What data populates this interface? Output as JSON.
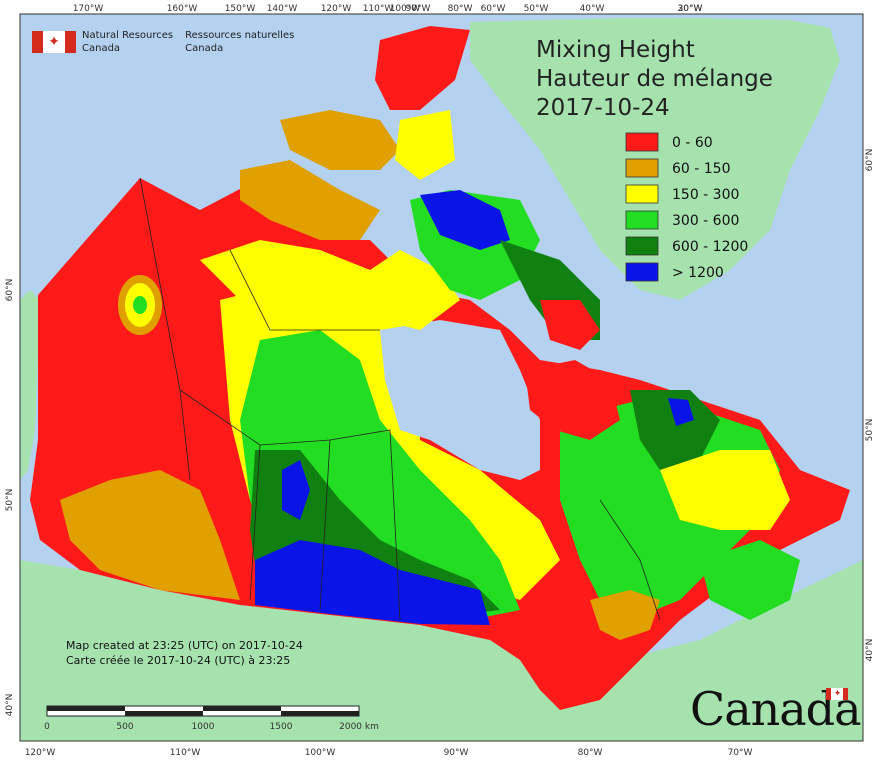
{
  "title": {
    "line1": "Mixing Height",
    "line2": "Hauteur de mélange",
    "date": "2017-10-24"
  },
  "agency": {
    "en_line1": "Natural Resources",
    "en_line2": "Canada",
    "fr_line1": "Ressources naturelles",
    "fr_line2": "Canada"
  },
  "legend": [
    {
      "label": "0 - 60",
      "color": "#ff1a1a"
    },
    {
      "label": "60 - 150",
      "color": "#e0a000"
    },
    {
      "label": "150 - 300",
      "color": "#ffff00"
    },
    {
      "label": "300 - 600",
      "color": "#22dd22"
    },
    {
      "label": "600 - 1200",
      "color": "#108010"
    },
    {
      "label": "> 1200",
      "color": "#0a14e6"
    }
  ],
  "credit": {
    "en": "Map created at 23:25 (UTC) on 2017-10-24",
    "fr": "Carte créée le 2017-10-24 (UTC) à 23:25"
  },
  "scale_bar": {
    "labels": [
      "0",
      "500",
      "1000",
      "1500",
      "2000 km"
    ]
  },
  "top_ticks": [
    "170°W",
    "160°W",
    "150°W",
    "140°W",
    "120°W",
    "110°W",
    "100°W",
    "90°W",
    "80°W",
    "60°W",
    "50°W",
    "40°W",
    "30°W",
    "20°W"
  ],
  "bottom_ticks": [
    "120°W",
    "110°W",
    "100°W",
    "90°W",
    "80°W",
    "70°W"
  ],
  "left_ticks": [
    "60°N",
    "50°N",
    "40°N"
  ],
  "right_ticks": [
    "60°N",
    "50°N",
    "40°N"
  ],
  "wordmark": "Canada",
  "colors": {
    "ocean": "#b4d2f0",
    "land_other": "#a6e2ae"
  }
}
